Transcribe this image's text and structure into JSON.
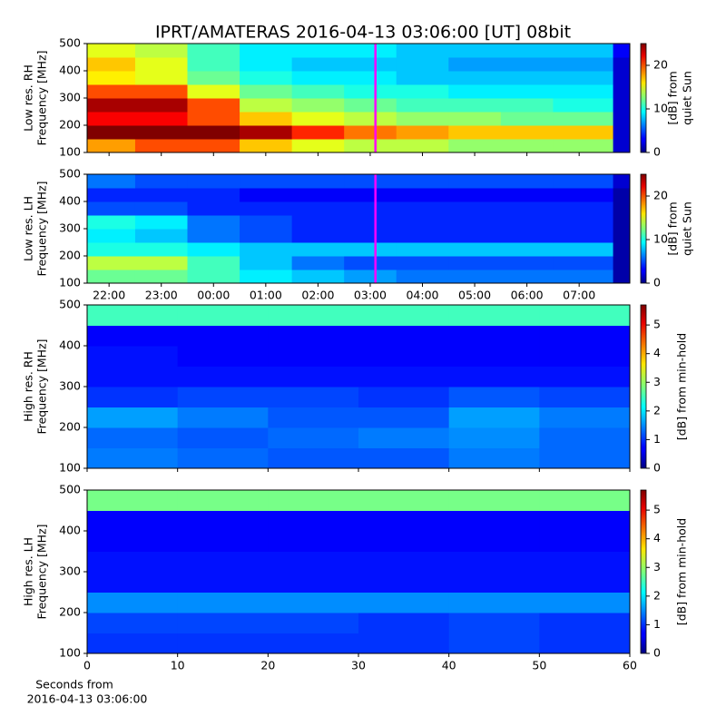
{
  "title": "IPRT/AMATERAS 2016-04-13 03:06:00 [UT]   08bit",
  "chart_data": [
    {
      "type": "heatmap",
      "ylabel": [
        "Low res. RH",
        "Frequency [MHz]"
      ],
      "colormap": "jet",
      "xlim": [
        21.58,
        31.97
      ],
      "ylim": [
        100,
        500
      ],
      "yticks": [
        100,
        200,
        300,
        400,
        500
      ],
      "x_bins": [
        21.58,
        22.5,
        23.5,
        24.5,
        25.5,
        26.5,
        27.5,
        28.5,
        29.5,
        30.5,
        31.65,
        31.97
      ],
      "y_bins": [
        100,
        150,
        200,
        250,
        300,
        350,
        400,
        450,
        500
      ],
      "z": [
        [
          18,
          20,
          20,
          17,
          15,
          14,
          14,
          13,
          13,
          13,
          2
        ],
        [
          25,
          25,
          25,
          24,
          21,
          19,
          18,
          17,
          17,
          17,
          2
        ],
        [
          22,
          22,
          20,
          17,
          15,
          14,
          13,
          13,
          12,
          12,
          2
        ],
        [
          24,
          24,
          20,
          14,
          13,
          12,
          11,
          11,
          11,
          10,
          2
        ],
        [
          20,
          20,
          15,
          12,
          11,
          10,
          10,
          9,
          9,
          9,
          2
        ],
        [
          16,
          15,
          12,
          10,
          9,
          9,
          8,
          8,
          8,
          8,
          2
        ],
        [
          17,
          15,
          11,
          9,
          8,
          8,
          8,
          7,
          7,
          7,
          2
        ],
        [
          15,
          14,
          11,
          9,
          9,
          9,
          8,
          8,
          8,
          8,
          3
        ]
      ],
      "clim": [
        0,
        25
      ],
      "cticks": [
        0,
        10,
        20
      ],
      "colorbar_label": [
        "[dB] from",
        "quiet Sun"
      ],
      "marker_x": 27.1,
      "marker_color": "#ff00ff"
    },
    {
      "type": "heatmap",
      "ylabel": [
        "Low res. LH",
        "Frequency [MHz]"
      ],
      "colormap": "jet",
      "xlim": [
        21.58,
        31.97
      ],
      "ylim": [
        100,
        500
      ],
      "yticks": [
        100,
        200,
        300,
        400,
        500
      ],
      "xticks": [
        {
          "value": 22,
          "label": "22:00"
        },
        {
          "value": 23,
          "label": "23:00"
        },
        {
          "value": 24,
          "label": "00:00"
        },
        {
          "value": 25,
          "label": "01:00"
        },
        {
          "value": 26,
          "label": "02:00"
        },
        {
          "value": 27,
          "label": "03:00"
        },
        {
          "value": 28,
          "label": "04:00"
        },
        {
          "value": 29,
          "label": "05:00"
        },
        {
          "value": 30,
          "label": "06:00"
        },
        {
          "value": 31,
          "label": "07:00"
        }
      ],
      "x_bins": [
        21.58,
        22.5,
        23.5,
        24.5,
        25.5,
        26.5,
        27.5,
        28.5,
        29.5,
        30.5,
        31.65,
        31.97
      ],
      "y_bins": [
        100,
        150,
        200,
        250,
        300,
        350,
        400,
        450,
        500
      ],
      "z": [
        [
          12,
          12,
          11,
          9,
          8,
          7,
          6,
          6,
          6,
          6,
          1
        ],
        [
          14,
          14,
          11,
          8,
          6,
          5,
          5,
          5,
          5,
          5,
          1
        ],
        [
          10,
          10,
          9,
          8,
          8,
          8,
          8,
          8,
          8,
          8,
          1
        ],
        [
          9,
          8,
          6,
          5,
          4,
          4,
          4,
          4,
          4,
          4,
          1
        ],
        [
          10,
          9,
          6,
          5,
          4,
          4,
          4,
          4,
          4,
          4,
          1
        ],
        [
          5,
          5,
          4,
          4,
          4,
          4,
          4,
          4,
          4,
          4,
          1
        ],
        [
          4,
          4,
          4,
          3,
          3,
          3,
          3,
          3,
          3,
          3,
          1
        ],
        [
          6,
          5,
          5,
          5,
          5,
          5,
          5,
          5,
          5,
          5,
          2
        ]
      ],
      "clim": [
        0,
        25
      ],
      "cticks": [
        0,
        10,
        20
      ],
      "colorbar_label": [
        "[dB] from",
        "quiet Sun"
      ],
      "marker_x": 27.1,
      "marker_color": "#ff00ff"
    },
    {
      "type": "heatmap",
      "ylabel": [
        "High res. RH",
        "Frequency [MHz]"
      ],
      "colormap": "jet",
      "xlim": [
        0,
        60
      ],
      "ylim": [
        100,
        500
      ],
      "yticks": [
        100,
        200,
        300,
        400,
        500
      ],
      "x_bins": [
        0,
        10,
        20,
        30,
        40,
        50,
        60
      ],
      "y_bins": [
        100,
        150,
        200,
        250,
        300,
        350,
        400,
        450,
        500
      ],
      "z": [
        [
          1.4,
          1.3,
          1.2,
          1.2,
          1.4,
          1.3
        ],
        [
          1.3,
          1.2,
          1.3,
          1.4,
          1.5,
          1.3
        ],
        [
          1.6,
          1.4,
          1.2,
          1.2,
          1.6,
          1.4
        ],
        [
          1.0,
          1.1,
          1.1,
          1.0,
          1.2,
          1.1
        ],
        [
          0.8,
          0.8,
          0.8,
          0.8,
          0.8,
          0.8
        ],
        [
          0.8,
          0.7,
          0.7,
          0.7,
          0.7,
          0.7
        ],
        [
          0.7,
          0.7,
          0.7,
          0.7,
          0.7,
          0.7
        ],
        [
          2.5,
          2.5,
          2.5,
          2.5,
          2.5,
          2.5
        ]
      ],
      "clim": [
        0,
        5.7
      ],
      "cticks": [
        0,
        1,
        2,
        3,
        4,
        5
      ],
      "colorbar_label": [
        "[dB] from min-hold"
      ]
    },
    {
      "type": "heatmap",
      "ylabel": [
        "High res. LH",
        "Frequency [MHz]"
      ],
      "colormap": "jet",
      "xlim": [
        0,
        60
      ],
      "ylim": [
        100,
        500
      ],
      "yticks": [
        100,
        200,
        300,
        400,
        500
      ],
      "xticks": [
        0,
        10,
        20,
        30,
        40,
        50,
        60
      ],
      "xlabel": [
        "Seconds from",
        "2016-04-13 03:06:00"
      ],
      "x_bins": [
        0,
        10,
        20,
        30,
        40,
        50,
        60
      ],
      "y_bins": [
        100,
        150,
        200,
        250,
        300,
        350,
        400,
        450,
        500
      ],
      "z": [
        [
          1.0,
          1.0,
          1.0,
          1.0,
          1.1,
          1.0
        ],
        [
          1.1,
          1.1,
          1.1,
          1.0,
          1.1,
          1.0
        ],
        [
          1.5,
          1.5,
          1.5,
          1.5,
          1.5,
          1.5
        ],
        [
          0.8,
          0.8,
          0.8,
          0.8,
          0.8,
          0.8
        ],
        [
          0.8,
          0.8,
          0.8,
          0.8,
          0.8,
          0.8
        ],
        [
          0.7,
          0.7,
          0.7,
          0.7,
          0.7,
          0.7
        ],
        [
          0.7,
          0.7,
          0.7,
          0.7,
          0.7,
          0.7
        ],
        [
          2.8,
          2.8,
          2.8,
          2.8,
          2.8,
          2.8
        ]
      ],
      "clim": [
        0,
        5.7
      ],
      "cticks": [
        0,
        1,
        2,
        3,
        4,
        5
      ],
      "colorbar_label": [
        "[dB] from min-hold"
      ]
    }
  ]
}
